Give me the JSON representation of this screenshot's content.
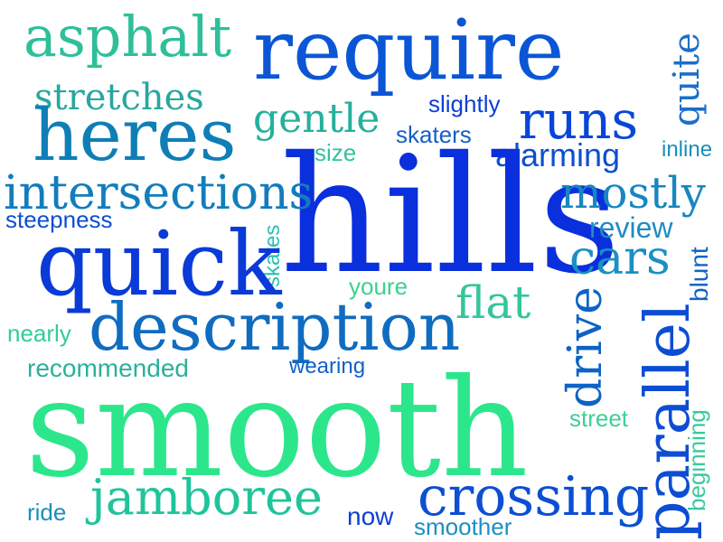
{
  "words": [
    {
      "text": "asphalt",
      "color": "#2fbf9a"
    },
    {
      "text": "require",
      "color": "#0b56d6"
    },
    {
      "text": "quite",
      "color": "#1b6fc7"
    },
    {
      "text": "stretches",
      "color": "#28a79e"
    },
    {
      "text": "slightly",
      "color": "#0a3fd8"
    },
    {
      "text": "runs",
      "color": "#0846d9"
    },
    {
      "text": "heres",
      "color": "#0f7eb6"
    },
    {
      "text": "gentle",
      "color": "#24b09c"
    },
    {
      "text": "skaters",
      "color": "#155fc8"
    },
    {
      "text": "size",
      "color": "#31c39a"
    },
    {
      "text": "alarming",
      "color": "#0c4fd0"
    },
    {
      "text": "inline",
      "color": "#1a8fb9"
    },
    {
      "text": "hills",
      "color": "#0a2fdc"
    },
    {
      "text": "intersections",
      "color": "#117dbd"
    },
    {
      "text": "mostly",
      "color": "#1886c0"
    },
    {
      "text": "steepness",
      "color": "#0d4ed2"
    },
    {
      "text": "skates",
      "color": "#2cc0b0"
    },
    {
      "text": "review",
      "color": "#1f8cc2"
    },
    {
      "text": "quick",
      "color": "#0a3ad8"
    },
    {
      "text": "cars",
      "color": "#1b90c3"
    },
    {
      "text": "blunt",
      "color": "#1263c8"
    },
    {
      "text": "youre",
      "color": "#3bd18f"
    },
    {
      "text": "flat",
      "color": "#34c69a"
    },
    {
      "text": "description",
      "color": "#0f6cc0"
    },
    {
      "text": "drive",
      "color": "#0d63c6"
    },
    {
      "text": "parallel",
      "color": "#0c4dd3"
    },
    {
      "text": "nearly",
      "color": "#34cc97"
    },
    {
      "text": "recommended",
      "color": "#2ab09d"
    },
    {
      "text": "wearing",
      "color": "#1060cb"
    },
    {
      "text": "smooth",
      "color": "#2ce68c"
    },
    {
      "text": "beginning",
      "color": "#38c9a0"
    },
    {
      "text": "street",
      "color": "#3cd195"
    },
    {
      "text": "crossing",
      "color": "#0c4fd2"
    },
    {
      "text": "ride",
      "color": "#1b8fb9"
    },
    {
      "text": "jamboree",
      "color": "#1fc49a"
    },
    {
      "text": "now",
      "color": "#0c3fd4"
    },
    {
      "text": "smoother",
      "color": "#1b8fc1"
    }
  ]
}
